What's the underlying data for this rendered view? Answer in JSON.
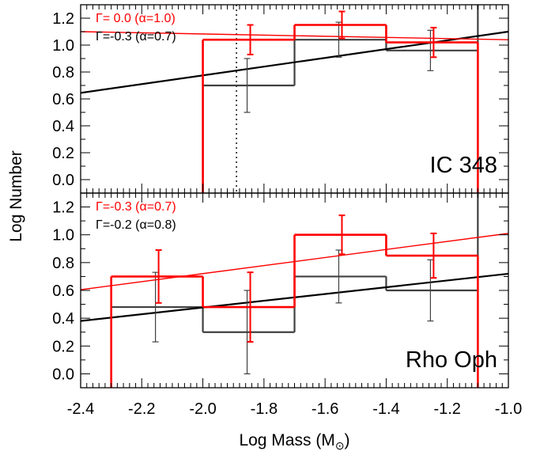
{
  "chart_data": [
    {
      "type": "histogram",
      "panel_label": "IC 348",
      "xlim": [
        -2.4,
        -1.0
      ],
      "ylim": [
        -0.1,
        1.3
      ],
      "xticks": [
        "-2.4",
        "-2.2",
        "-2.0",
        "-1.8",
        "-1.6",
        "-1.4",
        "-1.2",
        "-1.0"
      ],
      "yticks": [
        "0.0",
        "0.2",
        "0.4",
        "0.6",
        "0.8",
        "1.0",
        "1.2"
      ],
      "vline_x": -1.89,
      "colors": {
        "red": "#ff0000",
        "black": "#000000",
        "gray": "#404040"
      },
      "series": [
        {
          "name": "red",
          "color": "#ff0000",
          "legend": "Γ= 0.0 (α=1.0)",
          "bins": [
            {
              "x0": -2.0,
              "x1": -1.7,
              "y": 1.04
            },
            {
              "x0": -1.7,
              "x1": -1.4,
              "y": 1.15
            },
            {
              "x0": -1.4,
              "x1": -1.1,
              "y": 1.02
            }
          ],
          "left_drop_x": -2.0,
          "points": [
            {
              "x": -1.85,
              "y": 1.04,
              "err": 0.11
            },
            {
              "x": -1.55,
              "y": 1.15,
              "err": 0.1
            },
            {
              "x": -1.25,
              "y": 1.02,
              "err": 0.11
            }
          ],
          "fit": {
            "x": [
              -2.4,
              -1.0
            ],
            "y": [
              1.1,
              1.04
            ]
          }
        },
        {
          "name": "black",
          "color": "#404040",
          "legend": "Γ=-0.3 (α=0.7)",
          "bins": [
            {
              "x0": -2.0,
              "x1": -1.7,
              "y": 0.7
            },
            {
              "x0": -1.7,
              "x1": -1.4,
              "y": 1.04
            },
            {
              "x0": -1.4,
              "x1": -1.1,
              "y": 0.96
            }
          ],
          "right_rise_x": -1.1,
          "points": [
            {
              "x": -1.85,
              "y": 0.7,
              "err": 0.2
            },
            {
              "x": -1.55,
              "y": 1.04,
              "err": 0.13
            },
            {
              "x": -1.25,
              "y": 0.96,
              "err": 0.15
            }
          ],
          "fit": {
            "x": [
              -2.4,
              -1.0
            ],
            "y": [
              0.645,
              1.1
            ]
          }
        }
      ]
    },
    {
      "type": "histogram",
      "panel_label": "Rho Oph",
      "xlim": [
        -2.4,
        -1.0
      ],
      "ylim": [
        -0.1,
        1.3
      ],
      "xticks": [
        "-2.4",
        "-2.2",
        "-2.0",
        "-1.8",
        "-1.6",
        "-1.4",
        "-1.2",
        "-1.0"
      ],
      "yticks": [
        "0.0",
        "0.2",
        "0.4",
        "0.6",
        "0.8",
        "1.0",
        "1.2"
      ],
      "series": [
        {
          "name": "red",
          "color": "#ff0000",
          "legend": "Γ=-0.3 (α=0.7)",
          "bins": [
            {
              "x0": -2.3,
              "x1": -2.0,
              "y": 0.7
            },
            {
              "x0": -2.0,
              "x1": -1.7,
              "y": 0.48
            },
            {
              "x0": -1.7,
              "x1": -1.4,
              "y": 1.0
            },
            {
              "x0": -1.4,
              "x1": -1.1,
              "y": 0.85
            }
          ],
          "left_drop_x": -2.3,
          "points": [
            {
              "x": -2.15,
              "y": 0.7,
              "err": 0.19
            },
            {
              "x": -1.85,
              "y": 0.48,
              "err": 0.25
            },
            {
              "x": -1.55,
              "y": 1.0,
              "err": 0.14
            },
            {
              "x": -1.25,
              "y": 0.85,
              "err": 0.16
            }
          ],
          "fit": {
            "x": [
              -2.4,
              -1.0
            ],
            "y": [
              0.605,
              1.01
            ]
          }
        },
        {
          "name": "black",
          "color": "#404040",
          "legend": "Γ=-0.2 (α=0.8)",
          "bins": [
            {
              "x0": -2.3,
              "x1": -2.0,
              "y": 0.48
            },
            {
              "x0": -2.0,
              "x1": -1.7,
              "y": 0.3
            },
            {
              "x0": -1.7,
              "x1": -1.4,
              "y": 0.7
            },
            {
              "x0": -1.4,
              "x1": -1.1,
              "y": 0.6
            }
          ],
          "right_rise_x": -1.1,
          "points": [
            {
              "x": -2.15,
              "y": 0.48,
              "err": 0.25
            },
            {
              "x": -1.85,
              "y": 0.3,
              "err": 0.3
            },
            {
              "x": -1.55,
              "y": 0.7,
              "err": 0.19
            },
            {
              "x": -1.25,
              "y": 0.6,
              "err": 0.22
            }
          ],
          "fit": {
            "x": [
              -2.4,
              -1.0
            ],
            "y": [
              0.38,
              0.72
            ]
          }
        }
      ]
    }
  ],
  "axes": {
    "ylabel": "Log Number",
    "xlabel": "Log Mass (M",
    "xlabel_symbol": "⊙",
    "xlabel_close": ")"
  }
}
